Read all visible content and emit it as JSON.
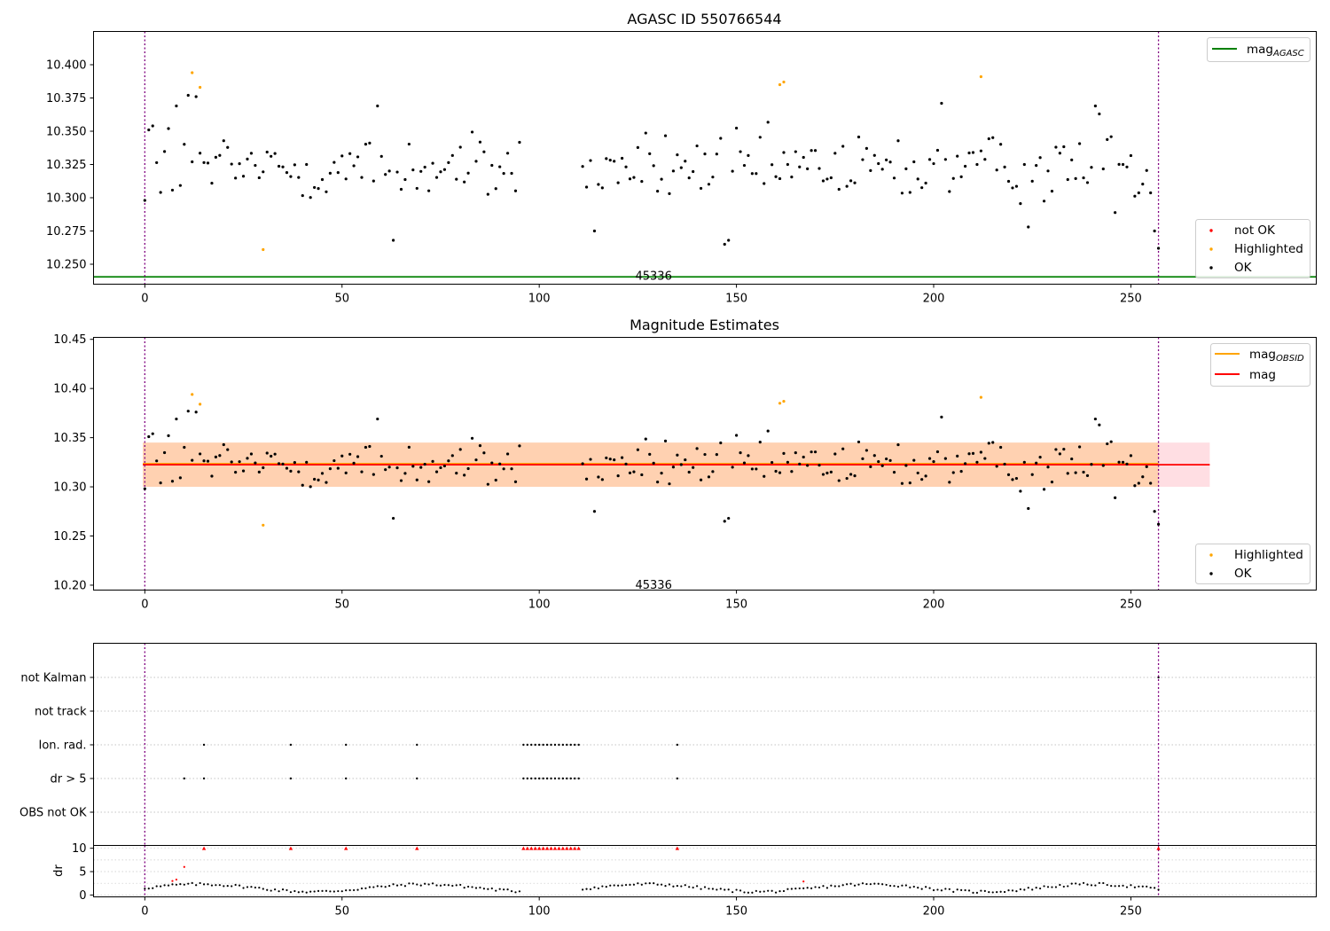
{
  "figure": {
    "background": "#ffffff"
  },
  "chart_data": [
    {
      "id": "top",
      "type": "scatter",
      "title": "AGASC ID 550766544",
      "xlim": [
        -13,
        297
      ],
      "ylim": [
        10.235,
        10.425
      ],
      "xticks": [
        0,
        50,
        100,
        150,
        200,
        250
      ],
      "yticks": [
        10.25,
        10.275,
        10.3,
        10.325,
        10.35,
        10.375,
        10.4
      ],
      "ytick_labels": [
        "10.250",
        "10.275",
        "10.300",
        "10.325",
        "10.350",
        "10.375",
        "10.400"
      ],
      "annotation": "45336",
      "annotation_at": {
        "x": 129,
        "y": 10.241
      },
      "vlines": [
        0,
        257
      ],
      "hlines": [
        {
          "name": "mag_AGASC",
          "y": 10.2405,
          "color": "#008000"
        }
      ],
      "line_legend": {
        "label": "mag",
        "subscript": "AGASC",
        "color": "#008000"
      },
      "marker_legend": [
        {
          "label": "not OK",
          "color": "#ff0000"
        },
        {
          "label": "Highlighted",
          "color": "#ffa500"
        },
        {
          "label": "OK",
          "color": "#000000"
        }
      ],
      "highlighted": [
        [
          12,
          10.394
        ],
        [
          14,
          10.383
        ],
        [
          30,
          10.261
        ],
        [
          161,
          10.385
        ],
        [
          162,
          10.387
        ],
        [
          212,
          10.391
        ]
      ]
    },
    {
      "id": "middle",
      "type": "scatter",
      "title": "Magnitude Estimates",
      "xlim": [
        -13,
        297
      ],
      "ylim": [
        10.195,
        10.452
      ],
      "xticks": [
        0,
        50,
        100,
        150,
        200,
        250
      ],
      "yticks": [
        10.2,
        10.25,
        10.3,
        10.35,
        10.4,
        10.45
      ],
      "ytick_labels": [
        "10.20",
        "10.25",
        "10.30",
        "10.35",
        "10.40",
        "10.45"
      ],
      "annotation": "45336",
      "annotation_at": {
        "x": 129,
        "y": 10.2
      },
      "vlines": [
        0,
        257
      ],
      "bands": [
        {
          "x": [
            -0.5,
            270
          ],
          "y": [
            10.3,
            10.345
          ],
          "color": "#ffb6c1",
          "opacity": 0.45
        },
        {
          "x": [
            -0.5,
            257
          ],
          "y": [
            10.3,
            10.345
          ],
          "color": "#ffa500",
          "opacity": 0.22
        }
      ],
      "hlines": [
        {
          "name": "mag_OBSID",
          "y": 10.3235,
          "x": [
            -0.5,
            257
          ],
          "color": "#ffa500"
        },
        {
          "name": "mag",
          "y": 10.3225,
          "x": [
            -0.5,
            270
          ],
          "color": "#ff0000"
        }
      ],
      "line_legend": [
        {
          "label": "mag",
          "subscript": "OBSID",
          "color": "#ffa500"
        },
        {
          "label": "mag",
          "subscript": "",
          "color": "#ff0000"
        }
      ],
      "marker_legend": [
        {
          "label": "Highlighted",
          "color": "#ffa500"
        },
        {
          "label": "OK",
          "color": "#000000"
        }
      ],
      "highlighted": [
        [
          12,
          10.394
        ],
        [
          14,
          10.384
        ],
        [
          30,
          10.261
        ],
        [
          161,
          10.385
        ],
        [
          162,
          10.387
        ],
        [
          212,
          10.391
        ]
      ]
    },
    {
      "id": "flags",
      "type": "scatter",
      "xlim": [
        -13,
        297
      ],
      "categories": [
        "not Kalman",
        "not track",
        "Ion. rad.",
        "dr > 5",
        "OBS not OK"
      ],
      "vlines": [
        0,
        257
      ],
      "points": {
        "not Kalman": [
          257
        ],
        "not track": [],
        "Ion. rad.": [
          15,
          37,
          51,
          69,
          96,
          97,
          98,
          99,
          100,
          101,
          102,
          103,
          104,
          105,
          106,
          107,
          108,
          109,
          110,
          135
        ],
        "dr > 5": [
          10,
          15,
          37,
          51,
          69,
          96,
          97,
          98,
          99,
          100,
          101,
          102,
          103,
          104,
          105,
          106,
          107,
          108,
          109,
          110,
          135
        ],
        "OBS not OK": []
      }
    },
    {
      "id": "dr",
      "type": "scatter",
      "ylabel": "dr",
      "xlim": [
        -13,
        297
      ],
      "ylim": [
        -0.4,
        10.6
      ],
      "xticks": [
        0,
        50,
        100,
        150,
        200,
        250
      ],
      "yticks": [
        0,
        5,
        10
      ],
      "clip": 10,
      "clipped_x": [
        15,
        37,
        51,
        69,
        96,
        97,
        98,
        99,
        100,
        101,
        102,
        103,
        104,
        105,
        106,
        107,
        108,
        109,
        110,
        135,
        257
      ],
      "red_points": [
        [
          7,
          3.0
        ],
        [
          8,
          3.3
        ],
        [
          10,
          6.0
        ],
        [
          167,
          2.9
        ]
      ]
    }
  ]
}
